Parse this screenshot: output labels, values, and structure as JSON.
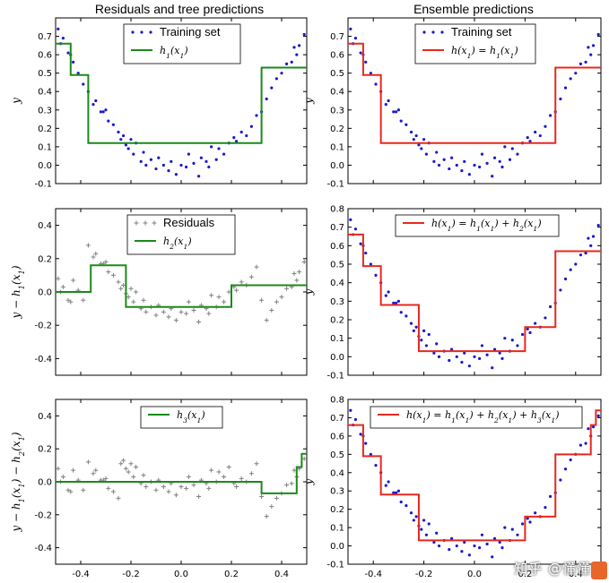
{
  "titles": {
    "left": "Residuals and tree predictions",
    "right": "Ensemble predictions"
  },
  "watermark": "知乎 @懂懂",
  "colors": {
    "green": "#1a8a1a",
    "red": "#e8281e",
    "points": "#1a1acc",
    "residual_points": "#808080"
  },
  "chart_data": [
    {
      "id": "p0",
      "type": "scatter+step",
      "title": "Residuals and tree predictions",
      "ylabel": "y",
      "xlim": [
        -0.5,
        0.5
      ],
      "ylim": [
        -0.1,
        0.8
      ],
      "yticks": [
        "-0.1",
        "0.0",
        "0.1",
        "0.2",
        "0.3",
        "0.4",
        "0.5",
        "0.6",
        "0.7"
      ],
      "xticks": [],
      "legend": {
        "placement": "top-center",
        "entries": [
          "Training set",
          "h_1(x_1)"
        ]
      },
      "scatter_color": "#1a1acc",
      "scatter_marker": "dot",
      "step_color": "#1a8a1a",
      "step": {
        "breaks": [
          -0.5,
          -0.44,
          -0.37,
          0.32,
          0.5
        ],
        "values": [
          0.66,
          0.49,
          0.12,
          0.53
        ]
      }
    },
    {
      "id": "p1",
      "type": "scatter+step",
      "title": "Ensemble predictions",
      "ylabel": "y",
      "xlim": [
        -0.5,
        0.5
      ],
      "ylim": [
        -0.1,
        0.8
      ],
      "yticks": [
        "-0.1",
        "0.0",
        "0.1",
        "0.2",
        "0.3",
        "0.4",
        "0.5",
        "0.6",
        "0.7"
      ],
      "xticks": [],
      "legend": {
        "placement": "top-center",
        "entries": [
          "Training set",
          "h(x_1) = h_1(x_1)"
        ]
      },
      "scatter_color": "#1a1acc",
      "scatter_marker": "dot",
      "step_color": "#e8281e",
      "step": {
        "breaks": [
          -0.5,
          -0.44,
          -0.37,
          0.32,
          0.5
        ],
        "values": [
          0.66,
          0.49,
          0.12,
          0.53
        ]
      }
    },
    {
      "id": "p2",
      "type": "scatter+step",
      "ylabel": "y − h_1(x_1)",
      "xlim": [
        -0.5,
        0.5
      ],
      "ylim": [
        -0.5,
        0.5
      ],
      "yticks": [
        "-0.4",
        "-0.2",
        "0.0",
        "0.2",
        "0.4"
      ],
      "xticks": [],
      "legend": {
        "placement": "top-center",
        "entries": [
          "Residuals",
          "h_2(x_1)"
        ]
      },
      "scatter_color": "#808080",
      "scatter_marker": "plus",
      "step_color": "#1a8a1a",
      "step": {
        "breaks": [
          -0.5,
          -0.36,
          -0.22,
          0.2,
          0.5
        ],
        "values": [
          0.0,
          0.16,
          -0.09,
          0.04
        ]
      }
    },
    {
      "id": "p3",
      "type": "scatter+step",
      "ylabel": "y",
      "xlim": [
        -0.5,
        0.5
      ],
      "ylim": [
        -0.1,
        0.8
      ],
      "yticks": [
        "-0.1",
        "0.0",
        "0.1",
        "0.2",
        "0.3",
        "0.4",
        "0.5",
        "0.6",
        "0.7",
        "0.8"
      ],
      "xticks": [],
      "legend": {
        "placement": "top-center",
        "entries": [
          "h(x_1) = h_1(x_1) + h_2(x_1)"
        ]
      },
      "scatter_color": "#1a1acc",
      "scatter_marker": "dot",
      "step_color": "#e8281e",
      "step": {
        "breaks": [
          -0.5,
          -0.44,
          -0.37,
          -0.22,
          0.2,
          0.32,
          0.5
        ],
        "values": [
          0.66,
          0.49,
          0.28,
          0.03,
          0.16,
          0.57
        ]
      }
    },
    {
      "id": "p4",
      "type": "scatter+step",
      "ylabel": "y − h_1(x_1) − h_2(x_1)",
      "xlim": [
        -0.5,
        0.5
      ],
      "ylim": [
        -0.5,
        0.5
      ],
      "yticks": [
        "-0.4",
        "-0.2",
        "0.0",
        "0.2",
        "0.4"
      ],
      "xticks": [
        "-0.4",
        "-0.2",
        "0.0",
        "0.2",
        "0.4"
      ],
      "legend": {
        "placement": "top-center",
        "entries": [
          "h_3(x_1)"
        ]
      },
      "scatter_color": "#808080",
      "scatter_marker": "plus",
      "step_color": "#1a8a1a",
      "step": {
        "breaks": [
          -0.5,
          0.32,
          0.46,
          0.48,
          0.5
        ],
        "values": [
          0.0,
          -0.07,
          0.09,
          0.17
        ]
      }
    },
    {
      "id": "p5",
      "type": "scatter+step",
      "ylabel": "y",
      "xlim": [
        -0.5,
        0.5
      ],
      "ylim": [
        -0.1,
        0.8
      ],
      "yticks": [
        "-0.1",
        "0.0",
        "0.1",
        "0.2",
        "0.3",
        "0.4",
        "0.5",
        "0.6",
        "0.7",
        "0.8"
      ],
      "xticks": [
        "-0.4",
        "-0.2",
        "0.0",
        "0.2",
        "0.4"
      ],
      "legend": {
        "placement": "top-center",
        "entries": [
          "h(x_1) = h_1(x_1) + h_2(x_1) + h_3(x_1)"
        ]
      },
      "scatter_color": "#1a1acc",
      "scatter_marker": "dot",
      "step_color": "#e8281e",
      "step": {
        "breaks": [
          -0.5,
          -0.44,
          -0.37,
          -0.22,
          0.2,
          0.32,
          0.46,
          0.48,
          0.5
        ],
        "values": [
          0.66,
          0.49,
          0.28,
          0.03,
          0.16,
          0.5,
          0.66,
          0.74
        ]
      }
    }
  ],
  "scatter_points": {
    "training": [
      [
        -0.49,
        0.74
      ],
      [
        -0.47,
        0.69
      ],
      [
        -0.45,
        0.61
      ],
      [
        -0.43,
        0.56
      ],
      [
        -0.41,
        0.5
      ],
      [
        -0.39,
        0.44
      ],
      [
        -0.37,
        0.4
      ],
      [
        -0.35,
        0.33
      ],
      [
        -0.34,
        0.35
      ],
      [
        -0.32,
        0.29
      ],
      [
        -0.31,
        0.29
      ],
      [
        -0.29,
        0.24
      ],
      [
        -0.27,
        0.22
      ],
      [
        -0.25,
        0.18
      ],
      [
        -0.24,
        0.14
      ],
      [
        -0.23,
        0.16
      ],
      [
        -0.21,
        0.09
      ],
      [
        -0.2,
        0.14
      ],
      [
        -0.19,
        0.06
      ],
      [
        -0.18,
        0.12
      ],
      [
        -0.16,
        0.02
      ],
      [
        -0.15,
        0.07
      ],
      [
        -0.14,
        0.0
      ],
      [
        -0.12,
        0.03
      ],
      [
        -0.1,
        -0.02
      ],
      [
        -0.09,
        0.04
      ],
      [
        -0.07,
        0.0
      ],
      [
        -0.05,
        -0.03
      ],
      [
        -0.04,
        0.02
      ],
      [
        -0.02,
        -0.05
      ],
      [
        0.0,
        0.0
      ],
      [
        0.02,
        -0.01
      ],
      [
        0.03,
        0.06
      ],
      [
        0.05,
        0.01
      ],
      [
        0.07,
        -0.06
      ],
      [
        0.08,
        0.04
      ],
      [
        0.1,
        0.02
      ],
      [
        0.12,
        0.1
      ],
      [
        0.14,
        0.03
      ],
      [
        0.15,
        0.09
      ],
      [
        0.17,
        0.06
      ],
      [
        0.19,
        0.12
      ],
      [
        0.21,
        0.15
      ],
      [
        0.22,
        0.13
      ],
      [
        0.24,
        0.18
      ],
      [
        0.26,
        0.16
      ],
      [
        0.28,
        0.21
      ],
      [
        0.3,
        0.27
      ],
      [
        0.32,
        0.29
      ],
      [
        0.34,
        0.36
      ],
      [
        0.36,
        0.42
      ],
      [
        0.38,
        0.47
      ],
      [
        0.4,
        0.5
      ],
      [
        0.42,
        0.55
      ],
      [
        0.44,
        0.56
      ],
      [
        0.46,
        0.6
      ],
      [
        0.47,
        0.65
      ],
      [
        0.49,
        0.71
      ],
      [
        -0.48,
        0.66
      ],
      [
        -0.44,
        0.6
      ],
      [
        -0.3,
        0.3
      ],
      [
        -0.22,
        0.11
      ],
      [
        0.11,
        -0.01
      ],
      [
        0.45,
        0.64
      ]
    ],
    "residuals_h2": [
      [
        -0.49,
        0.08
      ],
      [
        -0.47,
        0.03
      ],
      [
        -0.45,
        -0.05
      ],
      [
        -0.43,
        0.07
      ],
      [
        -0.41,
        0.01
      ],
      [
        -0.39,
        -0.05
      ],
      [
        -0.37,
        0.28
      ],
      [
        -0.35,
        0.21
      ],
      [
        -0.34,
        0.23
      ],
      [
        -0.32,
        0.17
      ],
      [
        -0.31,
        0.17
      ],
      [
        -0.29,
        0.12
      ],
      [
        -0.27,
        0.1
      ],
      [
        -0.25,
        0.06
      ],
      [
        -0.24,
        0.02
      ],
      [
        -0.23,
        0.04
      ],
      [
        -0.21,
        -0.03
      ],
      [
        -0.2,
        0.02
      ],
      [
        -0.19,
        -0.06
      ],
      [
        -0.18,
        0.0
      ],
      [
        -0.16,
        -0.1
      ],
      [
        -0.15,
        -0.05
      ],
      [
        -0.14,
        -0.12
      ],
      [
        -0.12,
        -0.09
      ],
      [
        -0.1,
        -0.14
      ],
      [
        -0.09,
        -0.08
      ],
      [
        -0.07,
        -0.12
      ],
      [
        -0.05,
        -0.15
      ],
      [
        -0.04,
        -0.1
      ],
      [
        -0.02,
        -0.17
      ],
      [
        0.0,
        -0.12
      ],
      [
        0.02,
        -0.13
      ],
      [
        0.03,
        -0.06
      ],
      [
        0.05,
        -0.11
      ],
      [
        0.07,
        -0.18
      ],
      [
        0.08,
        -0.08
      ],
      [
        0.1,
        -0.1
      ],
      [
        0.12,
        -0.02
      ],
      [
        0.14,
        -0.09
      ],
      [
        0.15,
        -0.03
      ],
      [
        0.17,
        -0.06
      ],
      [
        0.19,
        0.0
      ],
      [
        0.21,
        0.03
      ],
      [
        0.22,
        0.01
      ],
      [
        0.24,
        0.06
      ],
      [
        0.26,
        0.04
      ],
      [
        0.28,
        0.09
      ],
      [
        0.3,
        0.15
      ],
      [
        0.32,
        -0.05
      ],
      [
        0.34,
        -0.17
      ],
      [
        0.36,
        -0.11
      ],
      [
        0.38,
        -0.06
      ],
      [
        0.4,
        -0.03
      ],
      [
        0.42,
        0.02
      ],
      [
        0.44,
        0.03
      ],
      [
        0.46,
        0.07
      ],
      [
        0.47,
        0.12
      ],
      [
        0.49,
        0.18
      ],
      [
        -0.48,
        0.0
      ],
      [
        -0.44,
        -0.06
      ],
      [
        -0.3,
        0.18
      ],
      [
        -0.22,
        -0.01
      ],
      [
        0.11,
        -0.13
      ],
      [
        0.45,
        0.11
      ]
    ],
    "residuals_h3": [
      [
        -0.49,
        0.08
      ],
      [
        -0.47,
        0.03
      ],
      [
        -0.45,
        -0.05
      ],
      [
        -0.43,
        0.07
      ],
      [
        -0.41,
        0.01
      ],
      [
        -0.39,
        -0.05
      ],
      [
        -0.37,
        0.12
      ],
      [
        -0.35,
        0.05
      ],
      [
        -0.34,
        0.07
      ],
      [
        -0.32,
        0.01
      ],
      [
        -0.31,
        0.01
      ],
      [
        -0.29,
        -0.04
      ],
      [
        -0.27,
        -0.06
      ],
      [
        -0.25,
        -0.1
      ],
      [
        -0.24,
        0.11
      ],
      [
        -0.23,
        0.13
      ],
      [
        -0.21,
        0.06
      ],
      [
        -0.2,
        0.11
      ],
      [
        -0.19,
        0.03
      ],
      [
        -0.18,
        0.09
      ],
      [
        -0.16,
        -0.01
      ],
      [
        -0.15,
        0.04
      ],
      [
        -0.14,
        -0.03
      ],
      [
        -0.12,
        0.0
      ],
      [
        -0.1,
        -0.05
      ],
      [
        -0.09,
        0.01
      ],
      [
        -0.07,
        -0.03
      ],
      [
        -0.05,
        -0.06
      ],
      [
        -0.04,
        -0.01
      ],
      [
        -0.02,
        -0.08
      ],
      [
        0.0,
        -0.03
      ],
      [
        0.02,
        -0.04
      ],
      [
        0.03,
        0.03
      ],
      [
        0.05,
        -0.02
      ],
      [
        0.07,
        -0.09
      ],
      [
        0.08,
        0.01
      ],
      [
        0.1,
        -0.01
      ],
      [
        0.12,
        0.07
      ],
      [
        0.14,
        0.0
      ],
      [
        0.15,
        0.06
      ],
      [
        0.17,
        0.03
      ],
      [
        0.19,
        0.09
      ],
      [
        0.21,
        -0.01
      ],
      [
        0.22,
        -0.03
      ],
      [
        0.24,
        0.02
      ],
      [
        0.26,
        0.0
      ],
      [
        0.28,
        0.05
      ],
      [
        0.3,
        0.11
      ],
      [
        0.32,
        -0.09
      ],
      [
        0.34,
        -0.21
      ],
      [
        0.36,
        -0.15
      ],
      [
        0.38,
        -0.1
      ],
      [
        0.4,
        -0.07
      ],
      [
        0.42,
        -0.02
      ],
      [
        0.44,
        -0.01
      ],
      [
        0.46,
        0.03
      ],
      [
        0.47,
        0.08
      ],
      [
        0.49,
        0.14
      ],
      [
        -0.48,
        0.0
      ],
      [
        -0.44,
        -0.06
      ],
      [
        -0.3,
        0.02
      ],
      [
        -0.22,
        0.08
      ],
      [
        0.11,
        -0.04
      ],
      [
        0.45,
        0.07
      ]
    ]
  }
}
